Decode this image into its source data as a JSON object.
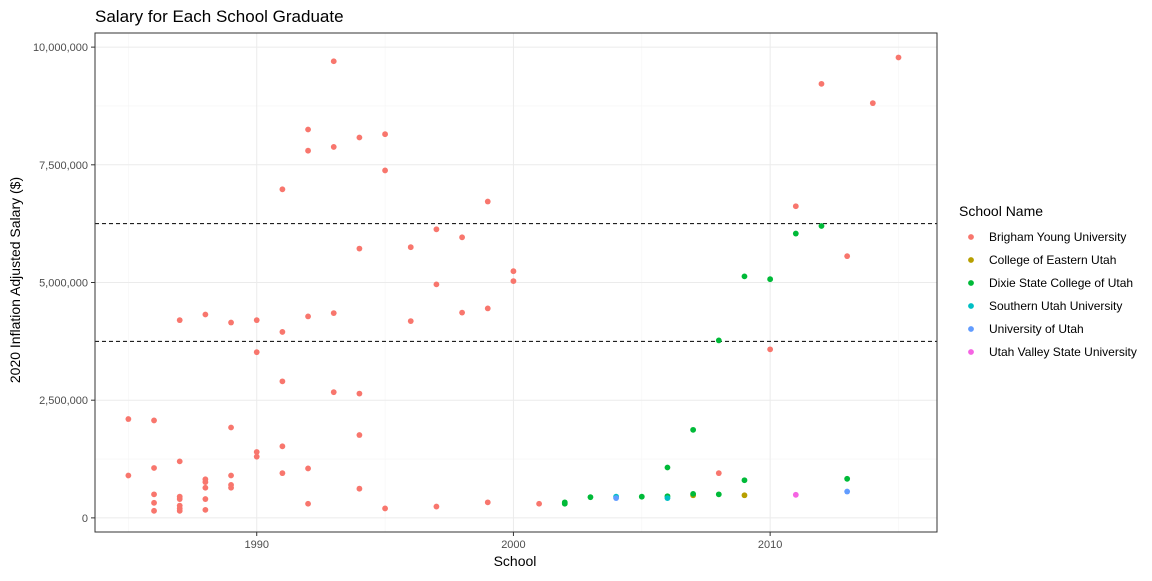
{
  "chart_data": {
    "type": "scatter",
    "title": "Salary for Each School Graduate",
    "xlabel": "School",
    "ylabel": "2020 Inflation Adjusted Salary ($)",
    "xlim": [
      1983.7,
      2016.5
    ],
    "ylim": [
      -300000,
      10300000
    ],
    "x_ticks": [
      1990,
      2000,
      2010
    ],
    "x_tick_labels": [
      "1990",
      "2000",
      "2010"
    ],
    "y_ticks": [
      0,
      2500000,
      5000000,
      7500000,
      10000000
    ],
    "y_tick_labels": [
      "0",
      "2,500,000",
      "5,000,000",
      "7,500,000",
      "10,000,000"
    ],
    "reference_lines_y": [
      3750000,
      6250000
    ],
    "legend": {
      "title": "School Name",
      "position": "right"
    },
    "series": [
      {
        "name": "Brigham Young University",
        "color": "#F8766D",
        "points": [
          [
            1985,
            2100000
          ],
          [
            1985,
            900000
          ],
          [
            1986,
            2070000
          ],
          [
            1986,
            1060000
          ],
          [
            1986,
            500000
          ],
          [
            1986,
            320000
          ],
          [
            1986,
            150000
          ],
          [
            1987,
            4200000
          ],
          [
            1987,
            1200000
          ],
          [
            1987,
            450000
          ],
          [
            1987,
            400000
          ],
          [
            1987,
            260000
          ],
          [
            1987,
            200000
          ],
          [
            1987,
            150000
          ],
          [
            1988,
            4320000
          ],
          [
            1988,
            820000
          ],
          [
            1988,
            760000
          ],
          [
            1988,
            640000
          ],
          [
            1988,
            400000
          ],
          [
            1988,
            170000
          ],
          [
            1989,
            4150000
          ],
          [
            1989,
            1920000
          ],
          [
            1989,
            900000
          ],
          [
            1989,
            700000
          ],
          [
            1989,
            640000
          ],
          [
            1990,
            4200000
          ],
          [
            1990,
            3520000
          ],
          [
            1990,
            1400000
          ],
          [
            1990,
            1300000
          ],
          [
            1991,
            6980000
          ],
          [
            1991,
            3950000
          ],
          [
            1991,
            2900000
          ],
          [
            1991,
            1520000
          ],
          [
            1991,
            950000
          ],
          [
            1992,
            8250000
          ],
          [
            1992,
            7800000
          ],
          [
            1992,
            4280000
          ],
          [
            1992,
            1050000
          ],
          [
            1992,
            300000
          ],
          [
            1993,
            9700000
          ],
          [
            1993,
            7880000
          ],
          [
            1993,
            4350000
          ],
          [
            1993,
            2670000
          ],
          [
            1994,
            8080000
          ],
          [
            1994,
            5720000
          ],
          [
            1994,
            2640000
          ],
          [
            1994,
            1760000
          ],
          [
            1994,
            620000
          ],
          [
            1995,
            8150000
          ],
          [
            1995,
            7380000
          ],
          [
            1995,
            200000
          ],
          [
            1996,
            5750000
          ],
          [
            1996,
            4180000
          ],
          [
            1997,
            6130000
          ],
          [
            1997,
            4960000
          ],
          [
            1997,
            240000
          ],
          [
            1998,
            5960000
          ],
          [
            1998,
            4360000
          ],
          [
            1999,
            6720000
          ],
          [
            1999,
            4450000
          ],
          [
            1999,
            330000
          ],
          [
            2000,
            5240000
          ],
          [
            2000,
            5030000
          ],
          [
            2001,
            300000
          ],
          [
            2008,
            950000
          ],
          [
            2010,
            3580000
          ],
          [
            2011,
            6620000
          ],
          [
            2012,
            9220000
          ],
          [
            2013,
            5560000
          ],
          [
            2014,
            8810000
          ],
          [
            2015,
            9780000
          ]
        ]
      },
      {
        "name": "College of Eastern Utah",
        "color": "#B79F00",
        "points": [
          [
            2007,
            480000
          ],
          [
            2009,
            480000
          ]
        ]
      },
      {
        "name": "Dixie State College of Utah",
        "color": "#00BA38",
        "points": [
          [
            2002,
            330000
          ],
          [
            2002,
            300000
          ],
          [
            2003,
            440000
          ],
          [
            2005,
            450000
          ],
          [
            2006,
            1070000
          ],
          [
            2006,
            460000
          ],
          [
            2007,
            1870000
          ],
          [
            2007,
            510000
          ],
          [
            2008,
            3770000
          ],
          [
            2008,
            500000
          ],
          [
            2009,
            5130000
          ],
          [
            2009,
            800000
          ],
          [
            2010,
            5070000
          ],
          [
            2011,
            6040000
          ],
          [
            2012,
            6200000
          ],
          [
            2013,
            830000
          ]
        ]
      },
      {
        "name": "Southern Utah University",
        "color": "#00BFC4",
        "points": [
          [
            2004,
            450000
          ],
          [
            2006,
            420000
          ]
        ]
      },
      {
        "name": "University of Utah",
        "color": "#619CFF",
        "points": [
          [
            2004,
            420000
          ],
          [
            2013,
            560000
          ]
        ]
      },
      {
        "name": "Utah Valley State University",
        "color": "#F564E3",
        "points": [
          [
            2011,
            490000
          ]
        ]
      }
    ]
  }
}
